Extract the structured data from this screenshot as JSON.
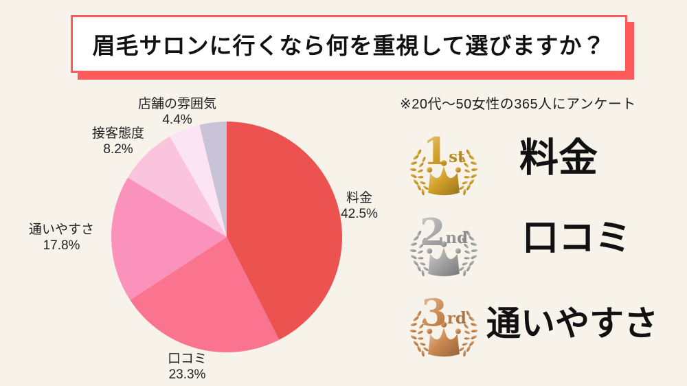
{
  "background_color": "#F7F3EB",
  "header": {
    "title": "眉毛サロンに行くなら何を重視して選びますか？",
    "box_fill": "#FFFFFF",
    "accent_color": "#FF5B5B",
    "text_color": "#111111"
  },
  "survey_note": {
    "text": "※20代〜50女性の365人にアンケート"
  },
  "chart_data": {
    "type": "pie",
    "title": "眉毛サロンに行くなら何を重視して選びますか？",
    "start_angle_deg": 0,
    "direction": "clockwise",
    "legend_position": "around",
    "segments": [
      {
        "label": "料金",
        "value": 42.5,
        "percent_label": "42.5%",
        "color": "#EC5350"
      },
      {
        "label": "口コミ",
        "value": 23.3,
        "percent_label": "23.3%",
        "color": "#FA7490"
      },
      {
        "label": "通いやすさ",
        "value": 17.8,
        "percent_label": "17.8%",
        "color": "#FA92BC"
      },
      {
        "label": "接客態度",
        "value": 8.2,
        "percent_label": "8.2%",
        "color": "#FAC4DC"
      },
      {
        "label": "店舗の雰囲気",
        "value": 4.4,
        "percent_label": "4.4%",
        "color": "#FBE5F4"
      },
      {
        "label": "",
        "value": 3.8,
        "percent_label": "",
        "color": "#C9C3D8"
      }
    ]
  },
  "ranking": {
    "items": [
      {
        "rank": "1",
        "suffix": "st",
        "label": "料金",
        "medal_color": "#D2A02A"
      },
      {
        "rank": "2",
        "suffix": "nd",
        "label": "口コミ",
        "medal_color": "#A6A6A6"
      },
      {
        "rank": "3",
        "suffix": "rd",
        "label": "通いやすさ",
        "medal_color": "#CC8A52"
      }
    ]
  }
}
